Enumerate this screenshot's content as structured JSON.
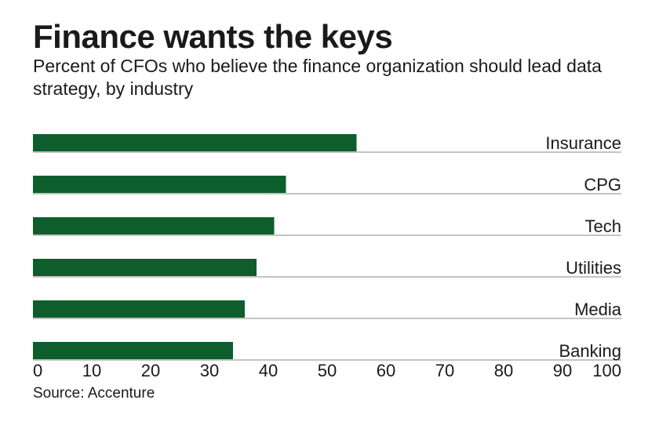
{
  "chart_data": {
    "type": "bar",
    "orientation": "horizontal",
    "title": "Finance wants the keys",
    "subtitle": "Percent of CFOs who believe the finance organization should lead data strategy, by industry",
    "categories": [
      "Insurance",
      "CPG",
      "Tech",
      "Utilities",
      "Media",
      "Banking"
    ],
    "values": [
      55,
      43,
      41,
      38,
      36,
      34
    ],
    "xlim": [
      0,
      100
    ],
    "xticks": [
      "0",
      "10",
      "20",
      "30",
      "40",
      "50",
      "60",
      "70",
      "80",
      "90",
      "100"
    ],
    "xlabel": "",
    "ylabel": "",
    "grid": false,
    "source": "Source: Accenture",
    "colors": {
      "bar": "#0d5e2c",
      "rule": "#8a8a8a"
    }
  }
}
